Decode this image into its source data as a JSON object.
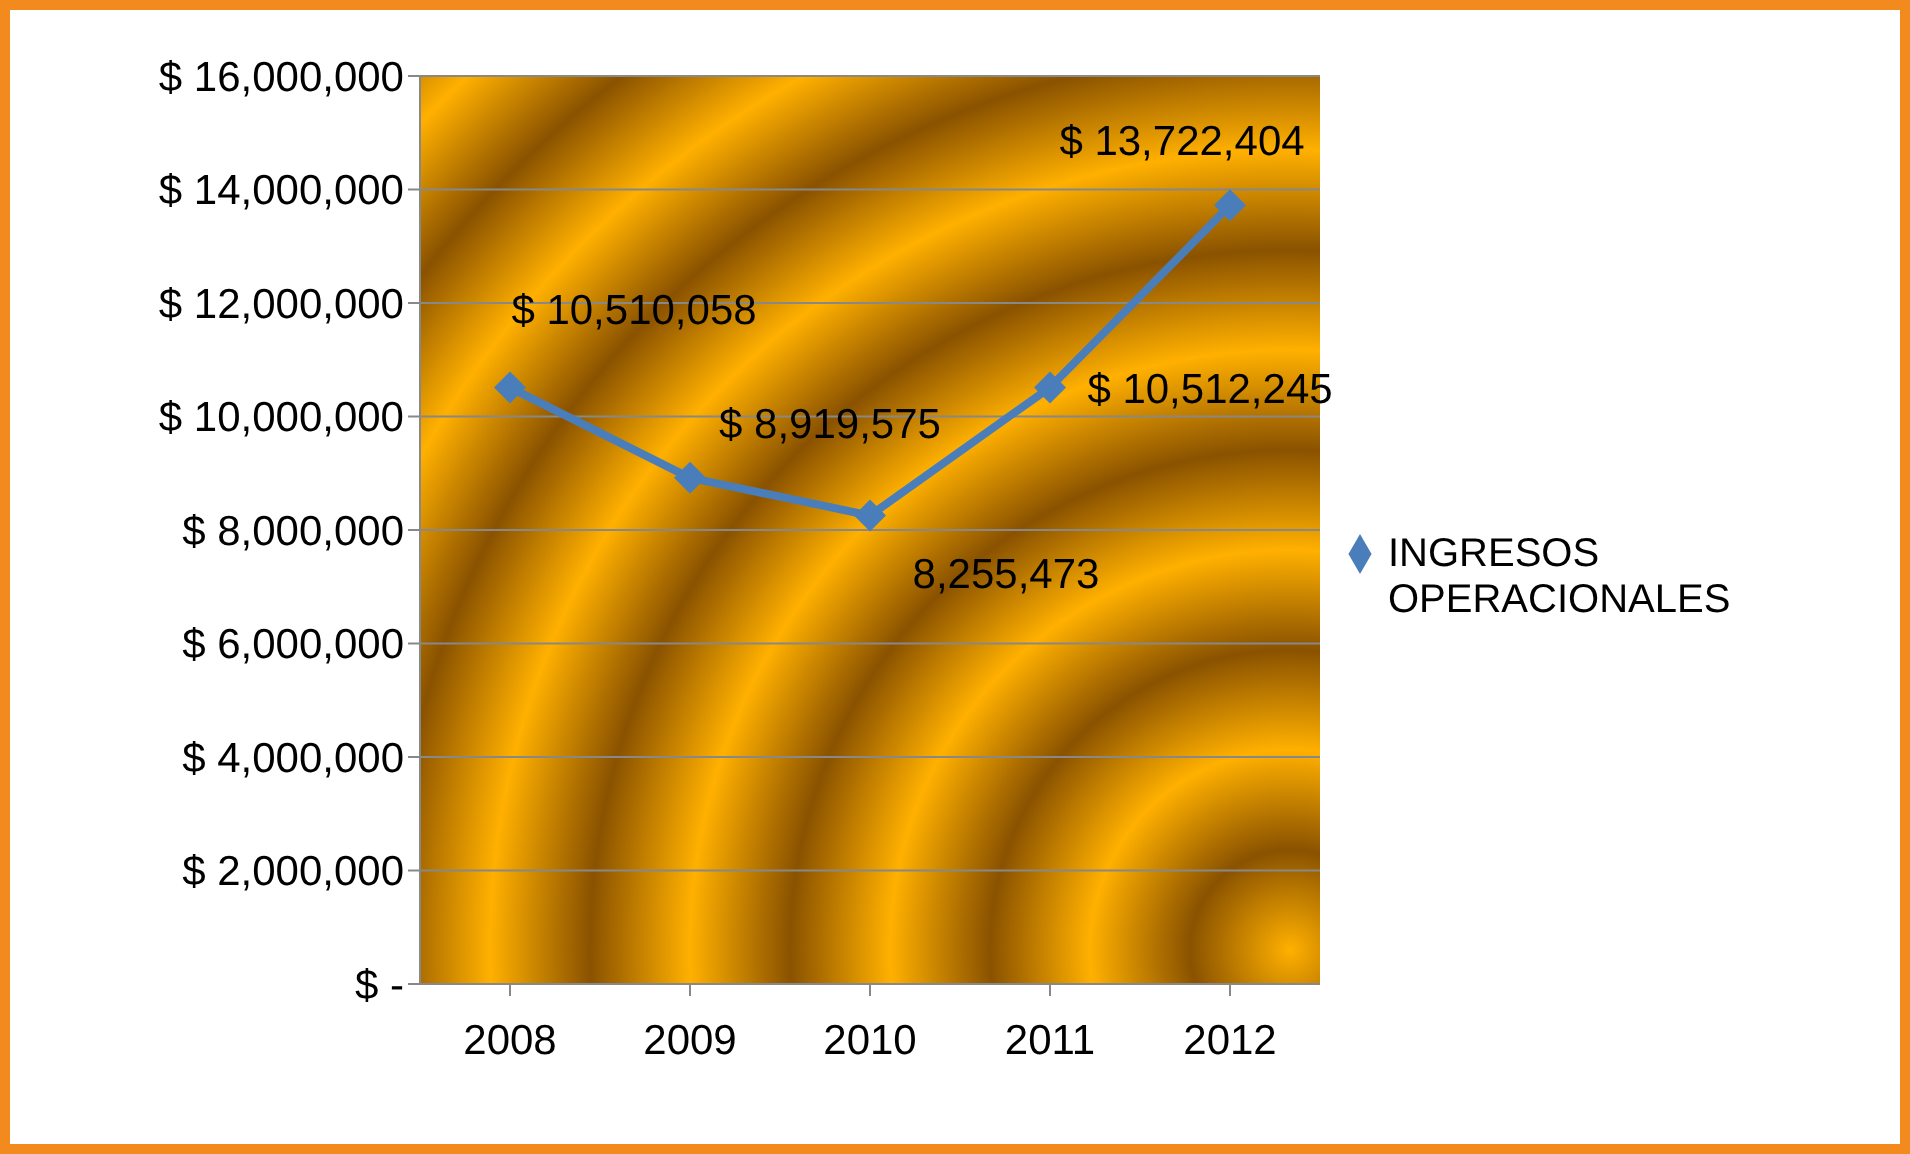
{
  "chart_data": {
    "type": "line",
    "categories": [
      "2008",
      "2009",
      "2010",
      "2011",
      "2012"
    ],
    "series": [
      {
        "name": "INGRESOS OPERACIONALES",
        "color": "#4a7ebb",
        "values": [
          10510058,
          8919575,
          8255473,
          10512245,
          13722404
        ],
        "value_labels": [
          "$ 10,510,058",
          "$ 8,919,575",
          "8,255,473",
          "$ 10,512,245",
          "$ 13,722,404"
        ]
      }
    ],
    "ylim": [
      0,
      16000000
    ],
    "yticks": [
      {
        "value": 0,
        "label": "$ -"
      },
      {
        "value": 2000000,
        "label": "$ 2,000,000"
      },
      {
        "value": 4000000,
        "label": "$ 4,000,000"
      },
      {
        "value": 6000000,
        "label": "$ 6,000,000"
      },
      {
        "value": 8000000,
        "label": "$ 8,000,000"
      },
      {
        "value": 10000000,
        "label": "$ 10,000,000"
      },
      {
        "value": 12000000,
        "label": "$ 12,000,000"
      },
      {
        "value": 14000000,
        "label": "$ 14,000,000"
      },
      {
        "value": 16000000,
        "label": "$ 16,000,000"
      }
    ],
    "grid": "y",
    "legend": "right",
    "marker": "diamond",
    "line_style": "solid"
  }
}
